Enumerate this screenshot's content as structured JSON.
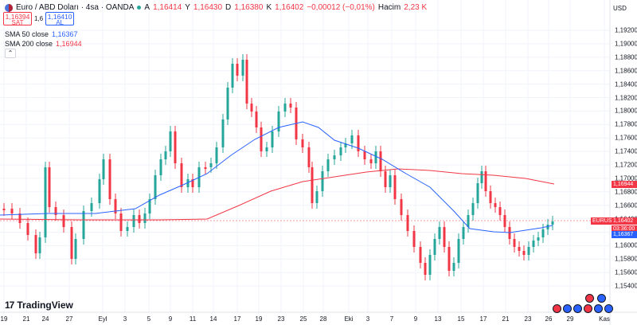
{
  "header": {
    "pair_title": "Euro / ABD Doları · 4sa · OANDA",
    "ohlc": [
      {
        "label": "A",
        "value": "1,16414"
      },
      {
        "label": "Y",
        "value": "1,16430"
      },
      {
        "label": "D",
        "value": "1,16380"
      },
      {
        "label": "K",
        "value": "1,16402"
      }
    ],
    "change": "−0,00012 (−0,01%)",
    "volume_label": "Hacim",
    "volume_value": "2,23 K"
  },
  "trade": {
    "sell_price": "1,16394",
    "sell_label": "SAT",
    "spread": "1,6",
    "buy_price": "1,16410",
    "buy_label": "AL"
  },
  "indicators": [
    {
      "name": "SMA 50 close",
      "value": "1,16367",
      "color": "#2962ff"
    },
    {
      "name": "SMA 200 close",
      "value": "1,16944",
      "color": "#f23645"
    }
  ],
  "collapse_glyph": "⌃",
  "currency": "USD",
  "y_axis": [
    "1,19200",
    "1,19000",
    "1,18800",
    "1,18600",
    "1,18400",
    "1,18200",
    "1,18000",
    "1,17800",
    "1,17600",
    "1,17400",
    "1,17200",
    "1,17000",
    "1,16800",
    "1,16600",
    "1,16400",
    "1,16200",
    "1,16000",
    "1,15800",
    "1,15600",
    "1,15400"
  ],
  "x_axis": [
    {
      "label": "19"
    },
    {
      "label": "21"
    },
    {
      "label": "24"
    },
    {
      "label": "27"
    },
    {
      "label": "Eyl"
    },
    {
      "label": "3"
    },
    {
      "label": "5"
    },
    {
      "label": "9"
    },
    {
      "label": "11"
    },
    {
      "label": "14"
    },
    {
      "label": "17"
    },
    {
      "label": "19"
    },
    {
      "label": "23"
    },
    {
      "label": "25"
    },
    {
      "label": "28"
    },
    {
      "label": "Eki"
    },
    {
      "label": "3"
    },
    {
      "label": "7"
    },
    {
      "label": "9"
    },
    {
      "label": "13"
    },
    {
      "label": "15"
    },
    {
      "label": "17"
    },
    {
      "label": "21"
    },
    {
      "label": "23"
    },
    {
      "label": "26"
    },
    {
      "label": "29"
    },
    {
      "label": "Kas"
    }
  ],
  "price_tags": {
    "symbol": "EURUSD",
    "price": "1,16402",
    "countdown": "03:36:00",
    "sma200": "1,16944",
    "sma50": "1,16367"
  },
  "logo_text": "TradingView",
  "colors": {
    "up": "#26a69a",
    "down": "#f23645",
    "sma50": "#2962ff",
    "sma200": "#f23645",
    "grid": "#f0f3fa"
  }
}
